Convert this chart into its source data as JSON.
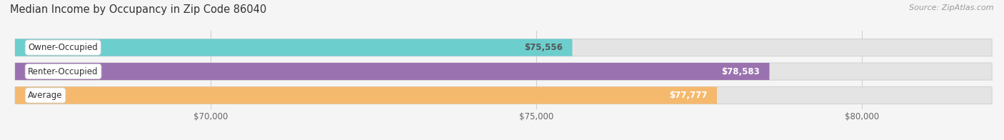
{
  "title": "Median Income by Occupancy in Zip Code 86040",
  "source": "Source: ZipAtlas.com",
  "categories": [
    "Owner-Occupied",
    "Renter-Occupied",
    "Average"
  ],
  "values": [
    75556,
    78583,
    77777
  ],
  "bar_colors": [
    "#6dcece",
    "#9b72b0",
    "#f5b96e"
  ],
  "bar_labels": [
    "$75,556",
    "$78,583",
    "$77,777"
  ],
  "label_colors": [
    "#555555",
    "#ffffff",
    "#ffffff"
  ],
  "xlim_min": 67000,
  "xlim_max": 82000,
  "xticks": [
    70000,
    75000,
    80000
  ],
  "xtick_labels": [
    "$70,000",
    "$75,000",
    "$80,000"
  ],
  "background_color": "#f5f5f5",
  "bar_bg_color": "#e4e4e4",
  "title_fontsize": 10.5,
  "source_fontsize": 8,
  "tick_fontsize": 8.5,
  "bar_label_fontsize": 8.5,
  "category_fontsize": 8.5
}
